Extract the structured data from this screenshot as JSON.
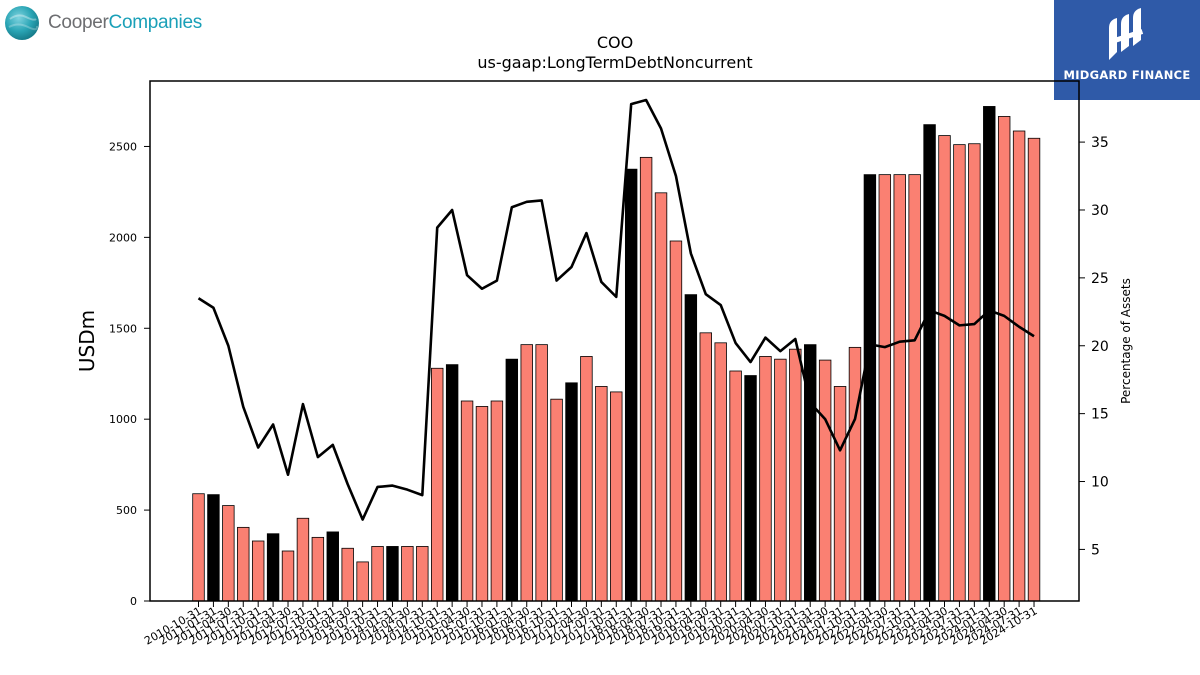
{
  "header": {
    "company_left": [
      "Cooper",
      "Companies"
    ],
    "company_right": "MIDGARD FINANCE"
  },
  "colors": {
    "bar_default": "#fa8072",
    "bar_highlight": "#000000",
    "line": "#000000",
    "brand_right_bg": "#2f5aa8",
    "brand_left_accent": "#1aa0b8"
  },
  "chart_data": {
    "type": "bar",
    "title": "COO",
    "subtitle": "us-gaap:LongTermDebtNoncurrent",
    "ylabel": "USDm",
    "y2label": "Percentage of Assets",
    "ylim": [
      0,
      2860
    ],
    "y2lim": [
      1.2,
      39.5
    ],
    "yticks": [
      0,
      500,
      1000,
      1500,
      2000,
      2500
    ],
    "y2ticks": [
      5,
      10,
      15,
      20,
      25,
      30,
      35
    ],
    "categories": [
      "2010-10-31",
      "2011-01-31",
      "2011-04-30",
      "2011-07-31",
      "2011-10-31",
      "2012-01-31",
      "2012-04-30",
      "2012-07-31",
      "2012-10-31",
      "2013-01-31",
      "2013-04-30",
      "2013-07-31",
      "2013-10-31",
      "2014-01-31",
      "2014-04-30",
      "2014-07-31",
      "2014-10-31",
      "2015-01-31",
      "2015-04-30",
      "2015-07-31",
      "2015-10-31",
      "2016-01-31",
      "2016-04-30",
      "2016-07-31",
      "2016-10-31",
      "2017-01-31",
      "2017-04-30",
      "2017-07-31",
      "2017-10-31",
      "2018-01-31",
      "2018-04-30",
      "2018-07-31",
      "2018-10-31",
      "2019-01-31",
      "2019-04-30",
      "2019-07-31",
      "2019-10-31",
      "2020-01-31",
      "2020-04-30",
      "2020-07-31",
      "2020-10-31",
      "2021-01-31",
      "2021-04-30",
      "2021-07-31",
      "2021-10-31",
      "2022-01-31",
      "2022-04-30",
      "2022-07-31",
      "2022-10-31",
      "2023-01-31",
      "2023-04-30",
      "2023-07-31",
      "2023-10-31",
      "2024-01-31",
      "2024-04-30",
      "2024-07-31",
      "2024-10-31"
    ],
    "series": [
      {
        "type": "bar",
        "values": [
          590,
          585,
          525,
          405,
          330,
          370,
          275,
          455,
          350,
          380,
          290,
          215,
          300,
          300,
          300,
          300,
          1280,
          1300,
          1100,
          1070,
          1100,
          1330,
          1410,
          1410,
          1110,
          1200,
          1345,
          1180,
          1150,
          2375,
          2440,
          2245,
          1980,
          1685,
          1475,
          1420,
          1265,
          1240,
          1345,
          1330,
          1385,
          1410,
          1325,
          1180,
          1395,
          2345,
          2345,
          2345,
          2345,
          2620,
          2560,
          2510,
          2515,
          2720,
          2665,
          2585,
          2545
        ],
        "highlight": [
          false,
          true,
          false,
          false,
          false,
          true,
          false,
          false,
          false,
          true,
          false,
          false,
          false,
          true,
          false,
          false,
          false,
          true,
          false,
          false,
          false,
          true,
          false,
          false,
          false,
          true,
          false,
          false,
          false,
          true,
          false,
          false,
          false,
          true,
          false,
          false,
          false,
          true,
          false,
          false,
          false,
          true,
          false,
          false,
          false,
          true,
          false,
          false,
          false,
          true,
          false,
          false,
          false,
          true,
          false,
          false,
          false
        ]
      },
      {
        "type": "line",
        "axis": "right",
        "values": [
          23.5,
          22.8,
          20.0,
          15.5,
          12.5,
          14.2,
          10.5,
          15.7,
          11.8,
          12.7,
          9.8,
          7.2,
          9.6,
          9.7,
          9.4,
          9.0,
          28.7,
          30.0,
          25.2,
          24.2,
          24.8,
          30.2,
          30.6,
          30.7,
          24.8,
          25.8,
          28.3,
          24.7,
          23.6,
          37.8,
          38.1,
          36.0,
          32.5,
          26.8,
          23.8,
          23.0,
          20.2,
          18.8,
          20.6,
          19.6,
          20.5,
          15.8,
          14.6,
          12.3,
          14.6,
          20.1,
          19.9,
          20.3,
          20.4,
          22.6,
          22.2,
          21.5,
          21.6,
          22.6,
          22.2,
          21.4,
          20.7
        ]
      }
    ],
    "grid": false,
    "legend": "none"
  }
}
